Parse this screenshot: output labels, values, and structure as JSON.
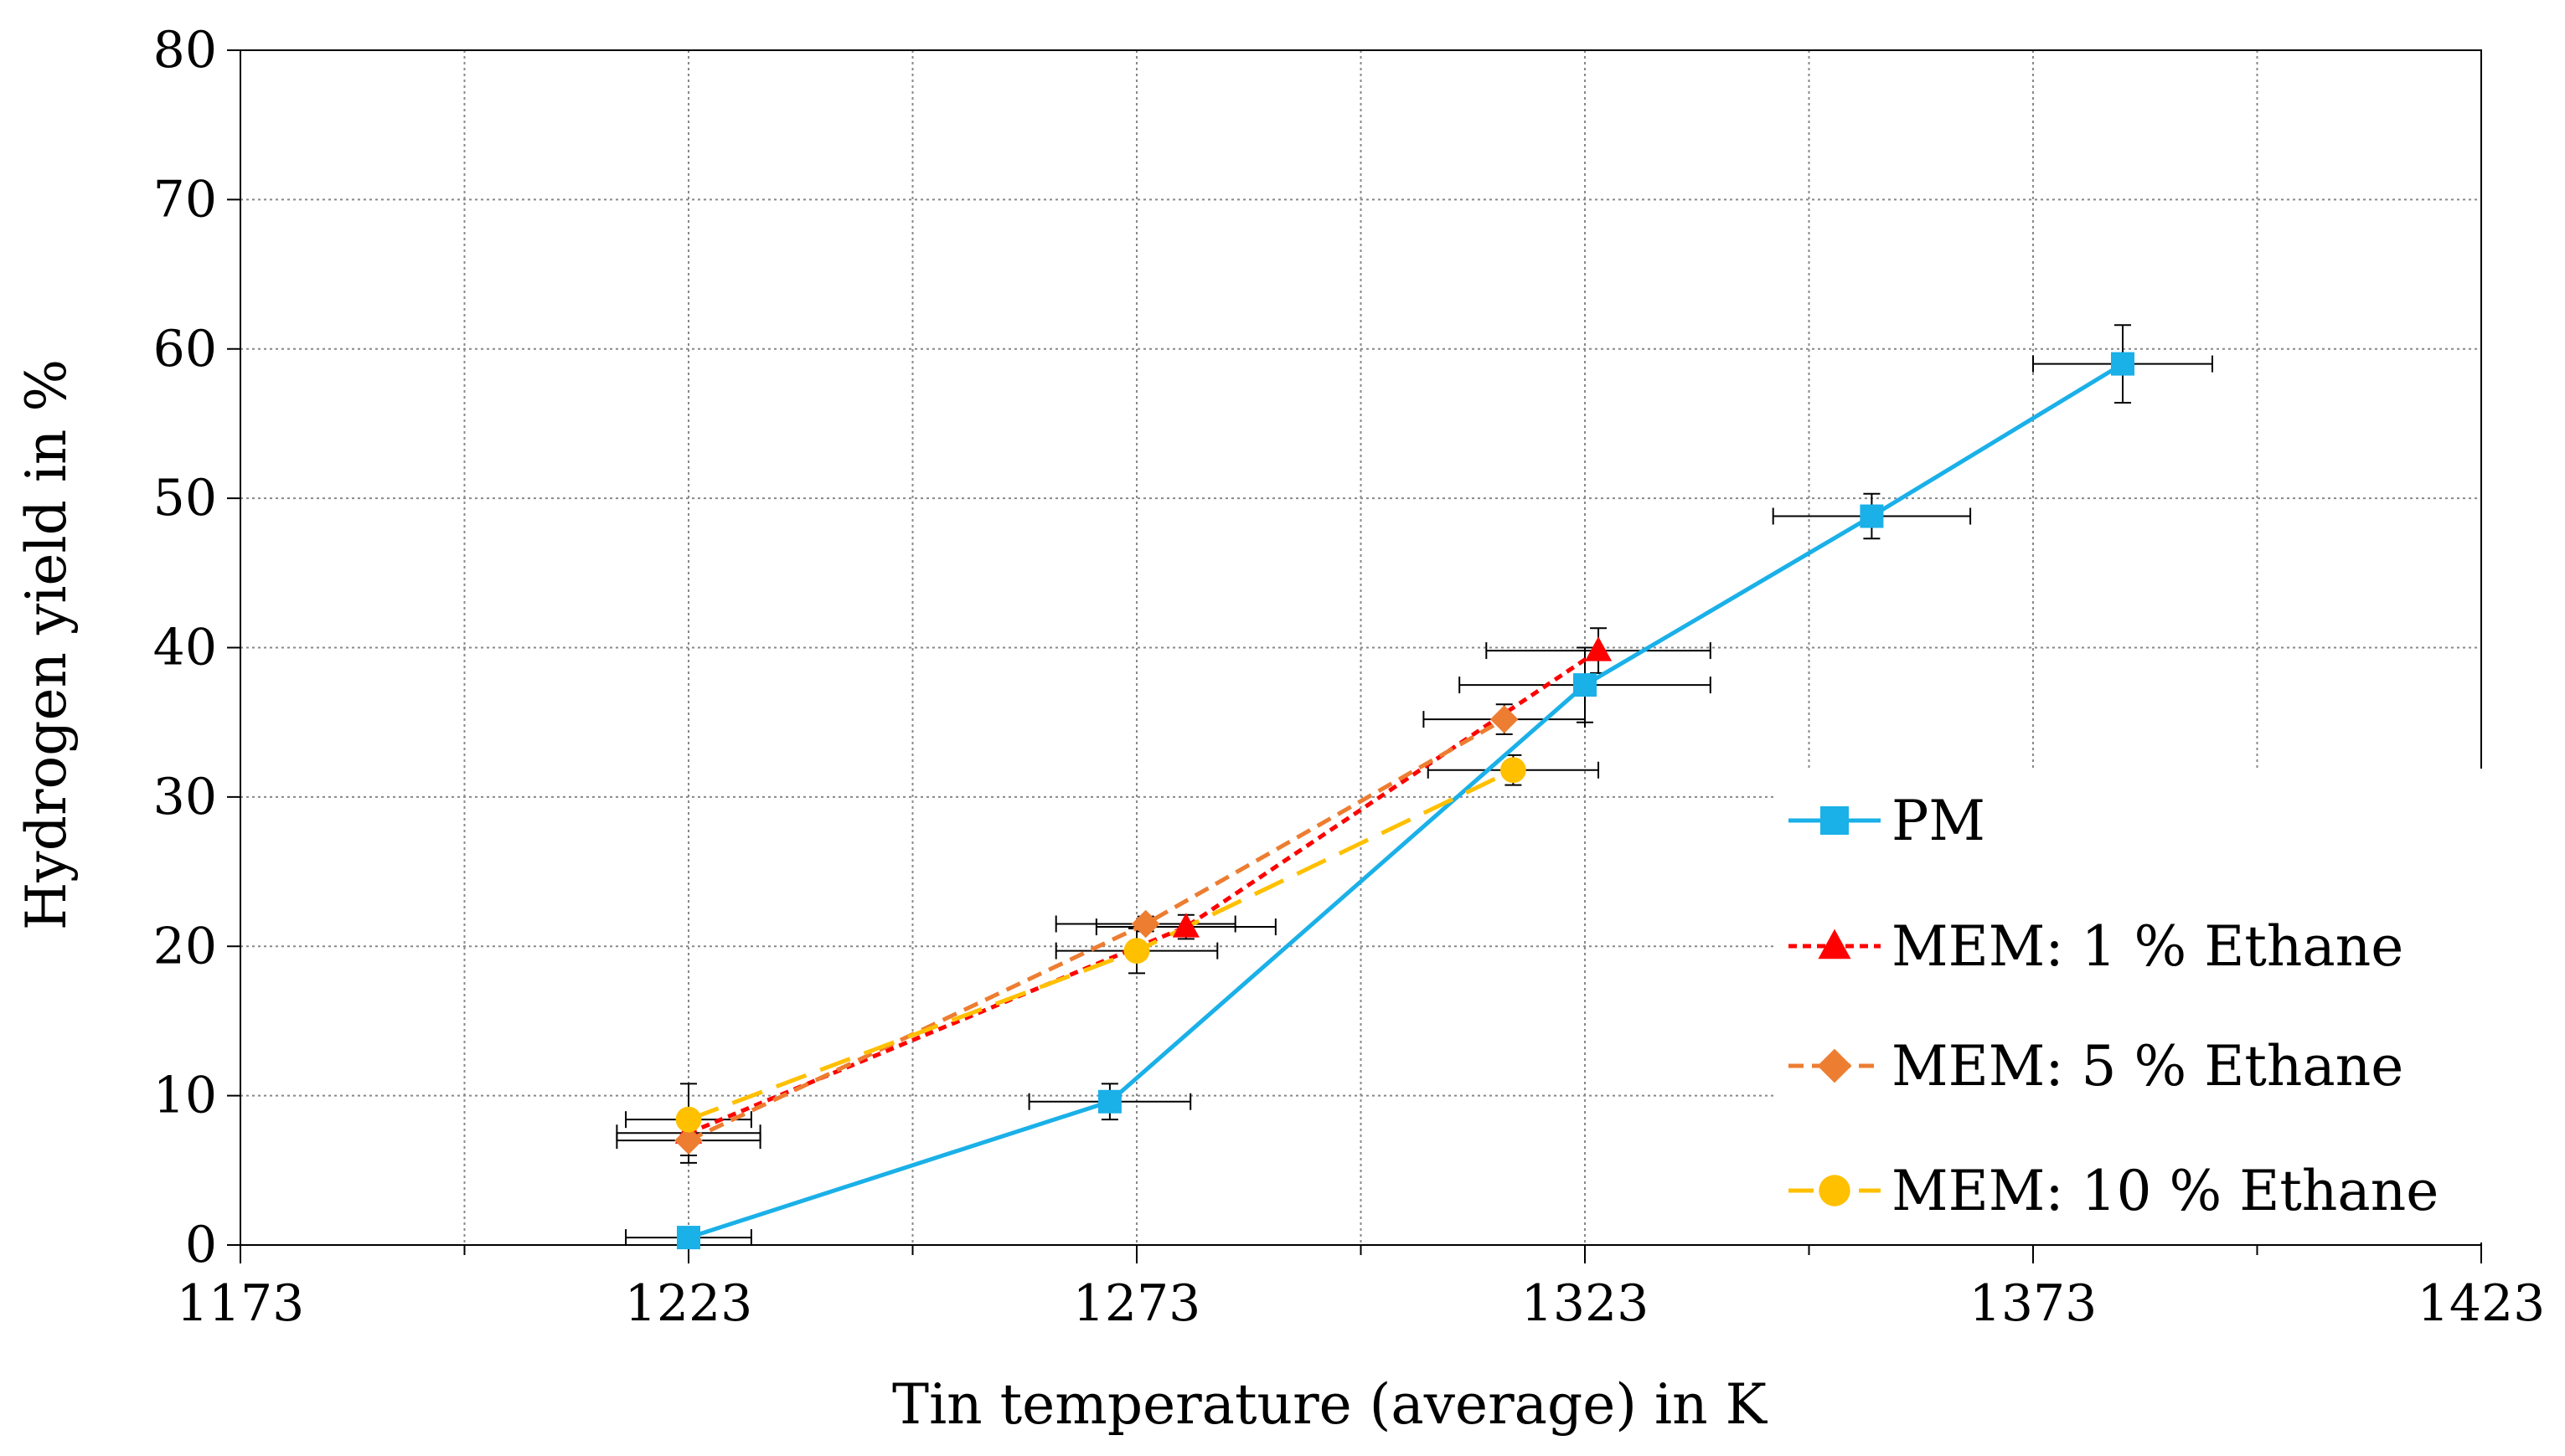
{
  "chart_data": {
    "type": "scatter",
    "title": "",
    "xlabel": "Tin temperature (average) in K",
    "ylabel": "Hydrogen yield in %",
    "xlim": [
      1173,
      1423
    ],
    "ylim": [
      0,
      80
    ],
    "xticks": [
      "1173",
      "1223",
      "1273",
      "1323",
      "1373",
      "1423"
    ],
    "yticks": [
      "0",
      "10",
      "20",
      "30",
      "40",
      "50",
      "60",
      "70",
      "80"
    ],
    "grid": true,
    "legend_position": "right",
    "series": [
      {
        "name": "PM",
        "color": "#1AB0E8",
        "marker": "square",
        "line": "solid",
        "points": [
          {
            "x": 1223,
            "y": 0.5,
            "xerr": 7,
            "yerr": 0.5
          },
          {
            "x": 1270,
            "y": 9.6,
            "xerr": 9,
            "yerr": 1.2
          },
          {
            "x": 1323,
            "y": 37.5,
            "xerr": 14,
            "yerr": 2.5
          },
          {
            "x": 1355,
            "y": 48.8,
            "xerr": 11,
            "yerr": 1.5
          },
          {
            "x": 1383,
            "y": 59.0,
            "xerr": 10,
            "yerr": 2.6
          }
        ]
      },
      {
        "name": "MEM: 1 % Ethane",
        "color": "#FF0000",
        "marker": "triangle",
        "line": "dotted",
        "points": [
          {
            "x": 1223,
            "y": 7.5,
            "xerr": 8,
            "yerr": 0.6
          },
          {
            "x": 1278.5,
            "y": 21.3,
            "xerr": 10,
            "yerr": 0.8
          },
          {
            "x": 1324.5,
            "y": 39.8,
            "xerr": 12.5,
            "yerr": 1.5
          }
        ]
      },
      {
        "name": "MEM: 5 % Ethane",
        "color": "#ED7D31",
        "marker": "diamond",
        "line": "dashed",
        "points": [
          {
            "x": 1223,
            "y": 7.0,
            "xerr": 8,
            "yerr": 1.5
          },
          {
            "x": 1274,
            "y": 21.5,
            "xerr": 10,
            "yerr": 0.5
          },
          {
            "x": 1314,
            "y": 35.2,
            "xerr": 9,
            "yerr": 1.0
          }
        ]
      },
      {
        "name": "MEM: 10 % Ethane",
        "color": "#FFC000",
        "marker": "circle",
        "line": "longdash",
        "points": [
          {
            "x": 1223,
            "y": 8.4,
            "xerr": 7,
            "yerr": 2.4
          },
          {
            "x": 1273,
            "y": 19.7,
            "xerr": 9,
            "yerr": 1.5
          },
          {
            "x": 1315,
            "y": 31.8,
            "xerr": 9.5,
            "yerr": 1.0
          }
        ]
      }
    ]
  }
}
